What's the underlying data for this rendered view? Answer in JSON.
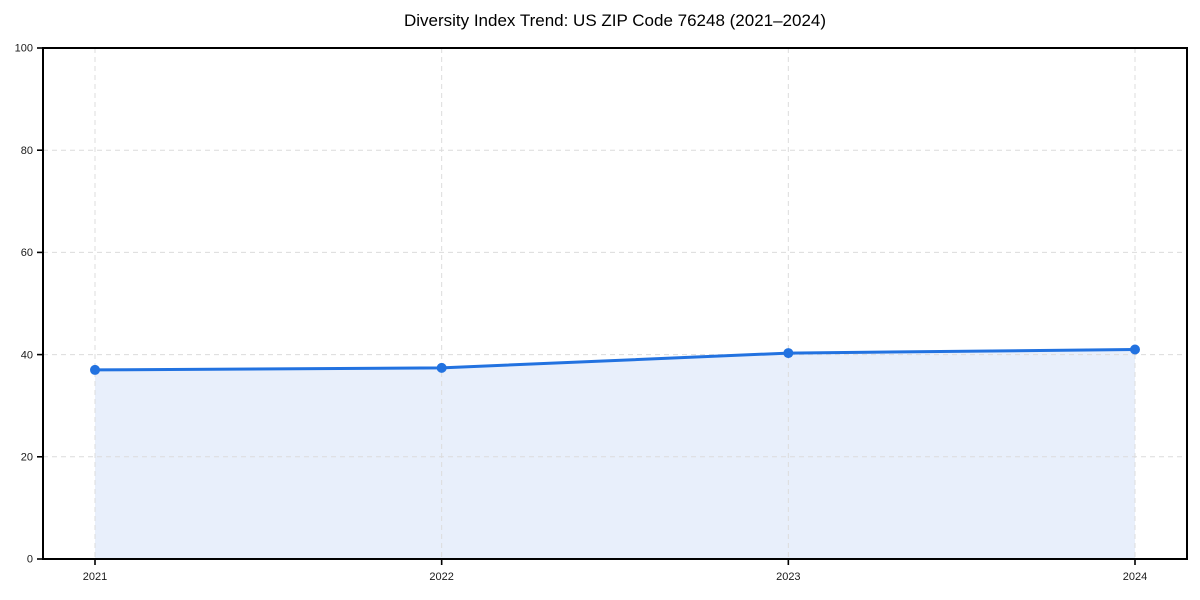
{
  "chart_data": {
    "type": "area",
    "title": "Diversity Index Trend: US ZIP Code 76248 (2021–2024)",
    "categories": [
      "2021",
      "2022",
      "2023",
      "2024"
    ],
    "series": [
      {
        "name": "Diversity Index",
        "values": [
          37.0,
          37.4,
          40.3,
          41.0
        ]
      }
    ],
    "xlabel": "",
    "ylabel": "",
    "ylim": [
      0,
      100
    ],
    "yticks": [
      0,
      20,
      40,
      60,
      80,
      100
    ],
    "grid": true,
    "grid_style": "dashed",
    "legend": "none",
    "marker": "circle",
    "colors": {
      "line": "#2272e0",
      "fill": "#e8effb",
      "grid": "#dcdcdc",
      "spine": "#000000",
      "text": "#1a1a1a",
      "background": "#ffffff"
    }
  }
}
